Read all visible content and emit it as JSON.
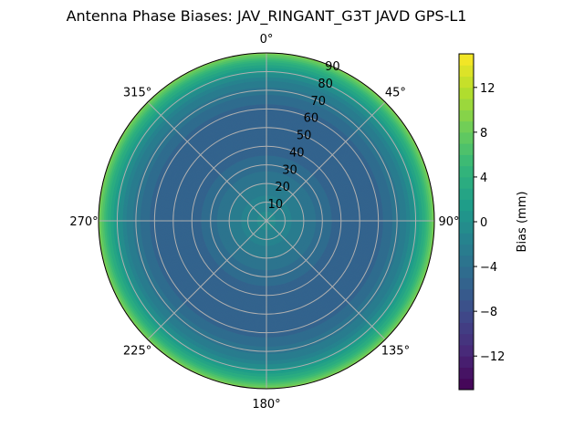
{
  "chart_data": {
    "type": "heatmap",
    "projection": "polar",
    "title": "Antenna Phase Biases: JAV_RINGANT_G3T JAVD GPS-L1",
    "theta_direction": "clockwise",
    "theta_zero": "top",
    "theta_ticks": [
      "0°",
      "45°",
      "90°",
      "135°",
      "180°",
      "225°",
      "270°",
      "315°"
    ],
    "r_ticks": [
      "10",
      "20",
      "30",
      "40",
      "50",
      "60",
      "70",
      "80",
      "90"
    ],
    "r_range": [
      0,
      90
    ],
    "grid": true,
    "colormap": "viridis",
    "colorbar": {
      "label": "Bias (mm)",
      "range": [
        -15,
        15
      ],
      "ticks": [
        "−12",
        "−8",
        "−4",
        "0",
        "4",
        "8",
        "12"
      ],
      "tick_values": [
        -12,
        -8,
        -4,
        0,
        4,
        8,
        12
      ],
      "level_step": 1
    },
    "radial_profile": {
      "r": [
        0,
        10,
        20,
        30,
        40,
        50,
        60,
        70,
        75,
        80,
        85,
        88,
        90
      ],
      "bias_mm": [
        -0.5,
        -1.5,
        -3,
        -4.5,
        -5.5,
        -6,
        -5.5,
        -3.5,
        -2,
        0.5,
        4,
        7,
        9.5
      ]
    }
  }
}
